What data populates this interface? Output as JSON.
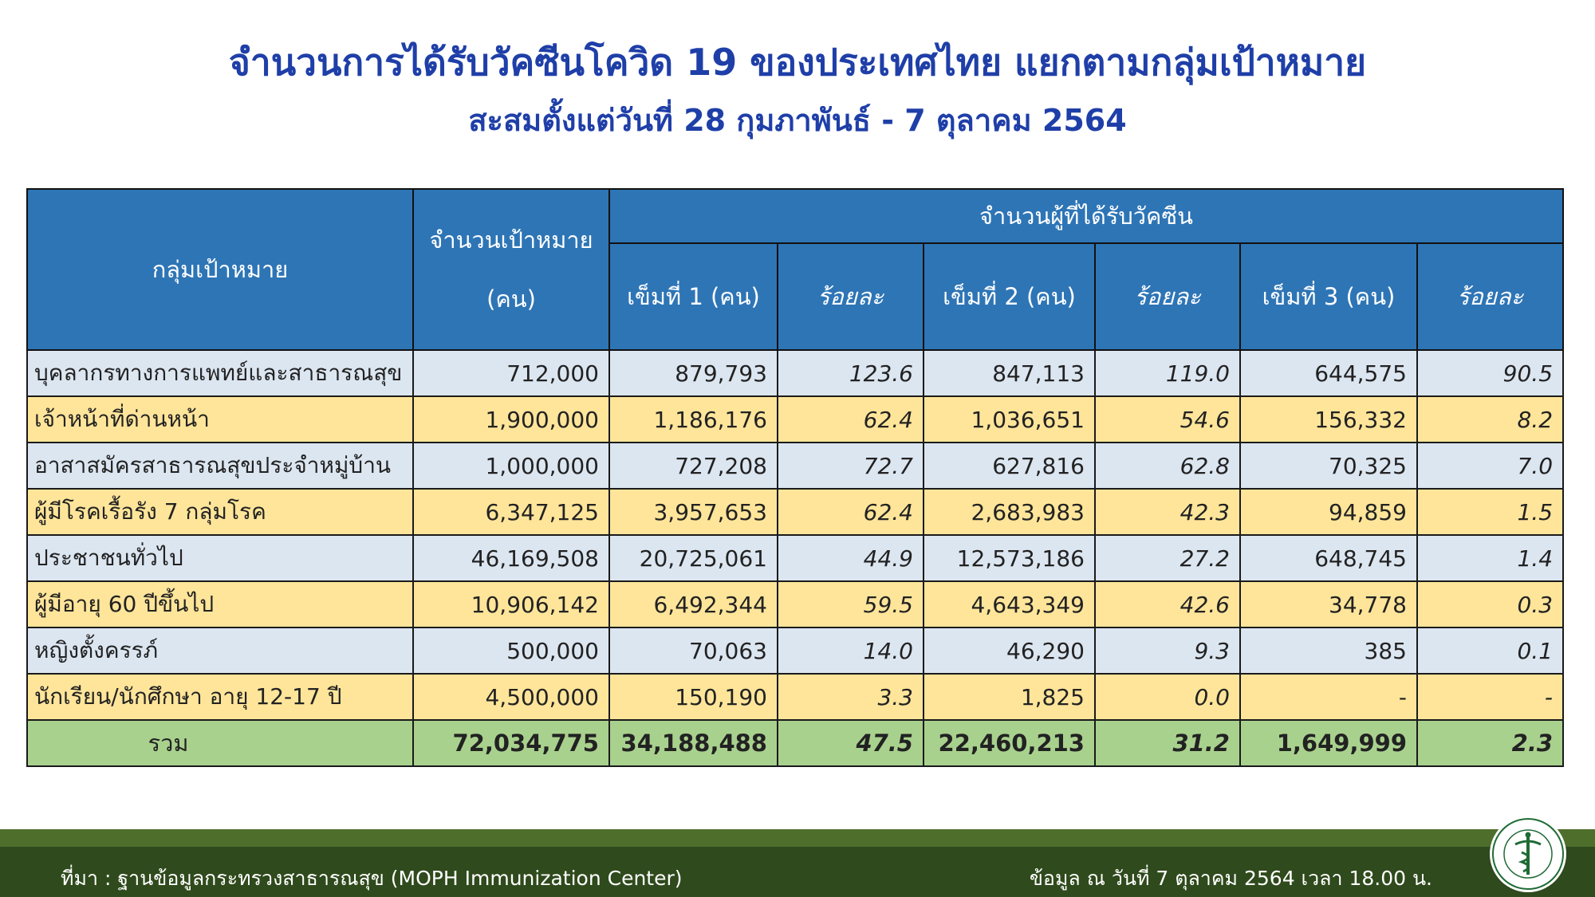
{
  "title": "จำนวนการได้รับวัคซีนโควิด 19 ของประเทศไทย แยกตามกลุ่มเป้าหมาย",
  "subtitle": "สะสมตั้งแต่วันที่ 28 กุมภาพันธ์ - 7 ตุลาคม 2564",
  "headers": {
    "group": "กลุ่มเป้าหมาย",
    "target_line1": "จำนวนเป้าหมาย",
    "target_line2": "(คน)",
    "vaccinated": "จำนวนผู้ที่ได้รับวัคซีน",
    "dose1": "เข็มที่ 1 (คน)",
    "pct1": "ร้อยละ",
    "dose2": "เข็มที่ 2 (คน)",
    "pct2": "ร้อยละ",
    "dose3": "เข็มที่ 3 (คน)",
    "pct3": "ร้อยละ"
  },
  "rows": [
    {
      "group": "บุคลากรทางการแพทย์และสาธารณสุข",
      "target": "712,000",
      "dose1": "879,793",
      "pct1": "123.6",
      "dose2": "847,113",
      "pct2": "119.0",
      "dose3": "644,575",
      "pct3": "90.5"
    },
    {
      "group": "เจ้าหน้าที่ด่านหน้า",
      "target": "1,900,000",
      "dose1": "1,186,176",
      "pct1": "62.4",
      "dose2": "1,036,651",
      "pct2": "54.6",
      "dose3": "156,332",
      "pct3": "8.2"
    },
    {
      "group": "อาสาสมัครสาธารณสุขประจำหมู่บ้าน",
      "target": "1,000,000",
      "dose1": "727,208",
      "pct1": "72.7",
      "dose2": "627,816",
      "pct2": "62.8",
      "dose3": "70,325",
      "pct3": "7.0"
    },
    {
      "group": "ผู้มีโรคเรื้อรัง 7 กลุ่มโรค",
      "target": "6,347,125",
      "dose1": "3,957,653",
      "pct1": "62.4",
      "dose2": "2,683,983",
      "pct2": "42.3",
      "dose3": "94,859",
      "pct3": "1.5"
    },
    {
      "group": "ประชาชนทั่วไป",
      "target": "46,169,508",
      "dose1": "20,725,061",
      "pct1": "44.9",
      "dose2": "12,573,186",
      "pct2": "27.2",
      "dose3": "648,745",
      "pct3": "1.4"
    },
    {
      "group": "ผู้มีอายุ 60 ปีขึ้นไป",
      "target": "10,906,142",
      "dose1": "6,492,344",
      "pct1": "59.5",
      "dose2": "4,643,349",
      "pct2": "42.6",
      "dose3": "34,778",
      "pct3": "0.3"
    },
    {
      "group": "หญิงตั้งครรภ์",
      "target": "500,000",
      "dose1": "70,063",
      "pct1": "14.0",
      "dose2": "46,290",
      "pct2": "9.3",
      "dose3": "385",
      "pct3": "0.1"
    },
    {
      "group": "นักเรียน/นักศึกษา อายุ 12-17 ปี",
      "target": "4,500,000",
      "dose1": "150,190",
      "pct1": "3.3",
      "dose2": "1,825",
      "pct2": "0.0",
      "dose3": "-",
      "pct3": "-"
    }
  ],
  "total": {
    "group": "รวม",
    "target": "72,034,775",
    "dose1": "34,188,488",
    "pct1": "47.5",
    "dose2": "22,460,213",
    "pct2": "31.2",
    "dose3": "1,649,999",
    "pct3": "2.3"
  },
  "footer": {
    "source": "ที่มา : ฐานข้อมูลกระทรวงสาธารณสุข (MOPH  Immunization Center)",
    "as_of": "ข้อมูล ณ วันที่ 7 ตุลาคม 2564 เวลา 18.00 น."
  },
  "logo": {
    "name": "moph-logo",
    "text_top": "กระทรวงสาธารณสุข",
    "text_bottom": "MINISTRY OF PUBLIC HEALTH"
  },
  "colors": {
    "title": "#1f3fa8",
    "header_bg": "#2e75b6",
    "row_blue": "#dce6f1",
    "row_yellow": "#ffe59a",
    "total_bg": "#a9d18e",
    "footer_bg": "#2f4a1c"
  }
}
